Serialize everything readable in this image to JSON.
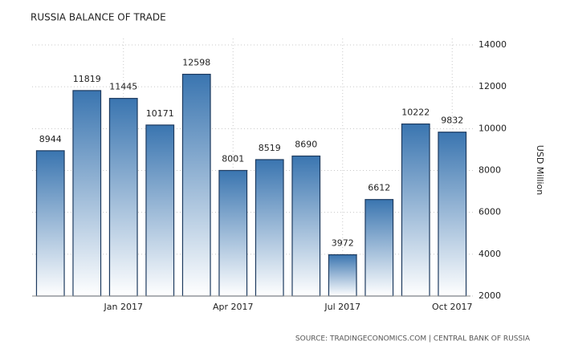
{
  "chart_data": {
    "type": "bar",
    "title": "RUSSIA BALANCE OF TRADE",
    "categories": [
      null,
      null,
      "Jan 2017",
      null,
      null,
      "Apr 2017",
      null,
      null,
      "Jul 2017",
      null,
      null,
      "Oct 2017"
    ],
    "values": [
      8944,
      11819,
      11445,
      10171,
      12598,
      8001,
      8519,
      8690,
      3972,
      6612,
      10222,
      9832
    ],
    "color": "#3a75b0",
    "ylim": [
      2000,
      14000
    ],
    "yticks": [
      2000,
      4000,
      6000,
      8000,
      10000,
      12000,
      14000
    ],
    "y_axis_label": "USD Million",
    "grid": true,
    "source": "SOURCE: TRADINGECONOMICS.COM | CENTRAL BANK OF RUSSIA"
  }
}
